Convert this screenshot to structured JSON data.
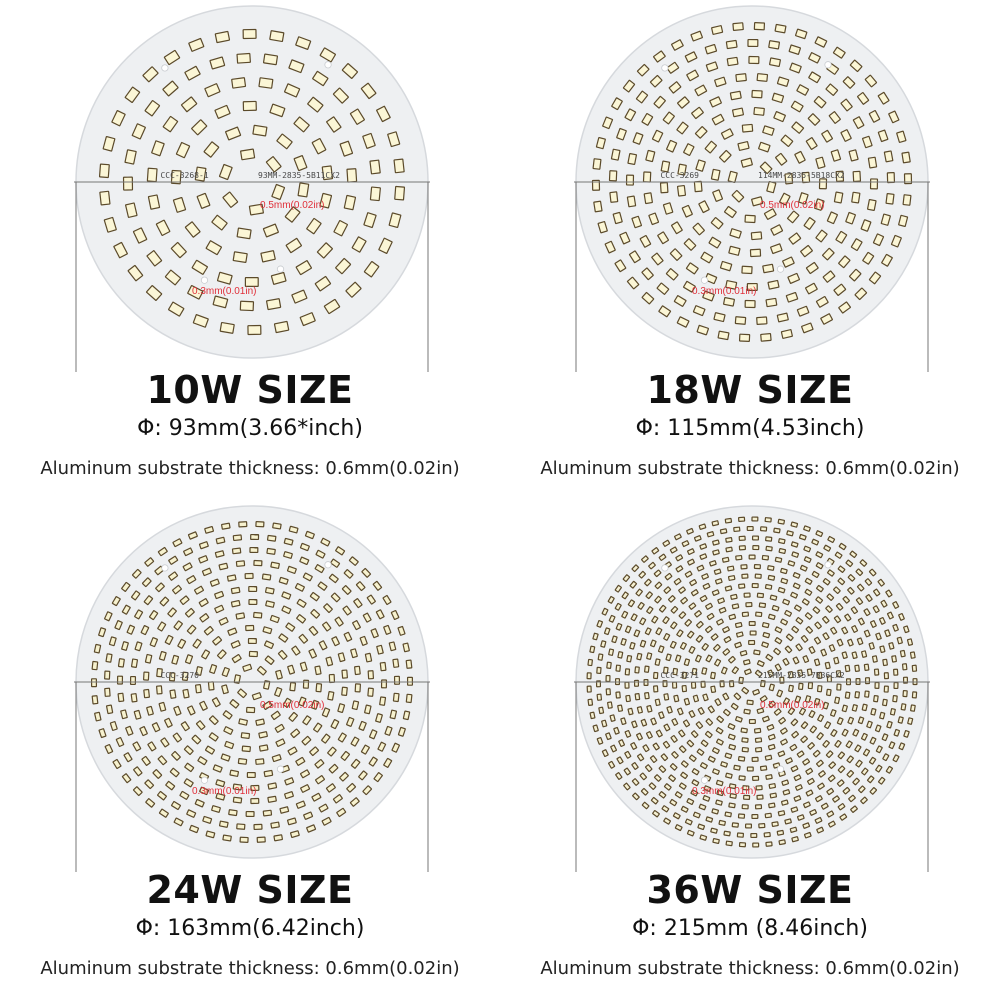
{
  "panels": [
    {
      "title": "10W SIZE",
      "diameter": "Φ:  93mm(3.66*inch)",
      "thickness": "Aluminum substrate thickness: 0.6mm(0.02in)",
      "pcb_code": "CCC-3268-1",
      "pcb_model": "93MM-2835-5B11CX2",
      "gap_a": "0.5mm(0.02in)",
      "gap_b": "0.3mm(0.01in)",
      "led_color": "#fbf6d6"
    },
    {
      "title": "18W SIZE",
      "diameter": "Φ:  115mm(4.53inch)",
      "thickness": "Aluminum substrate thickness: 0.6mm(0.02in)",
      "pcb_code": "CCC-3269",
      "pcb_model": "114MM-2835-5B18CX2",
      "gap_a": "0.5mm(0.02in)",
      "gap_b": "0.3mm(0.01in)",
      "led_color": "#fbf6d6"
    },
    {
      "title": "24W SIZE",
      "diameter": "Φ:  163mm(6.42inch)",
      "thickness": "Aluminum substrate thickness: 0.6mm(0.02in)",
      "pcb_code": "CCC-3270",
      "pcb_model": "",
      "gap_a": "0.5mm(0.02in)",
      "gap_b": "0.3mm(0.01in)",
      "led_color": "#f7f2cf"
    },
    {
      "title": "36W SIZE",
      "diameter": "Φ:  215mm (8.46inch)",
      "thickness": "Aluminum substrate thickness: 0.6mm(0.02in)",
      "pcb_code": "CCC-3271",
      "pcb_model": "215MM-2835-7B36CX2",
      "gap_a": "0.5mm(0.02in)",
      "gap_b": "0.3mm(0.01in)",
      "led_color": "#f5f0d2"
    }
  ],
  "colors": {
    "board": "#eef0f2",
    "board_edge": "#d6d9dd",
    "led_frame": "#5b4a2a",
    "annotation_red": "#e0303a",
    "dimension_line": "#777777"
  }
}
